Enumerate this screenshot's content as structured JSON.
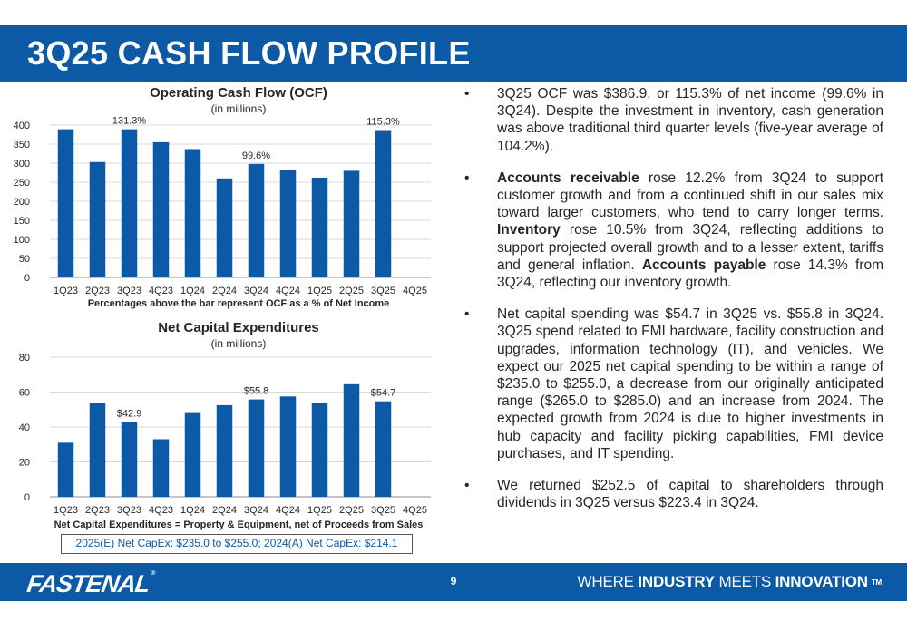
{
  "slide": {
    "title": "3Q25 CASH FLOW PROFILE",
    "page_number": "9",
    "colors": {
      "brand_blue": "#0c5aa6",
      "bar": "#0c5aa6",
      "text": "#262626"
    }
  },
  "chart_data": [
    {
      "type": "bar",
      "title": "Operating Cash Flow (OCF)",
      "subtitle": "(in millions)",
      "xlabel": "Percentages above the bar represent OCF as a % of Net Income",
      "ylabel": "",
      "categories": [
        "1Q23",
        "2Q23",
        "3Q23",
        "4Q23",
        "1Q24",
        "2Q24",
        "3Q24",
        "4Q24",
        "1Q25",
        "2Q25",
        "3Q25",
        "4Q25"
      ],
      "values": [
        389,
        303,
        389,
        355,
        337,
        260,
        298,
        282,
        262,
        280,
        386.9,
        null
      ],
      "bar_labels": [
        "",
        "",
        "131.3%",
        "",
        "",
        "",
        "99.6%",
        "",
        "",
        "",
        "115.3%",
        ""
      ],
      "yticks": [
        0,
        50,
        100,
        150,
        200,
        250,
        300,
        350,
        400
      ],
      "ylim": [
        0,
        400
      ],
      "grid": true
    },
    {
      "type": "bar",
      "title": "Net Capital Expenditures",
      "subtitle": "(in millions)",
      "xlabel": "Net Capital Expenditures = Property & Equipment, net of Proceeds from Sales",
      "ylabel": "",
      "categories": [
        "1Q23",
        "2Q23",
        "3Q23",
        "4Q23",
        "1Q24",
        "2Q24",
        "3Q24",
        "4Q24",
        "1Q25",
        "2Q25",
        "3Q25",
        "4Q25"
      ],
      "values": [
        31,
        54,
        42.9,
        33,
        48,
        52.5,
        55.8,
        57.5,
        54,
        64.5,
        54.7,
        null
      ],
      "bar_labels": [
        "",
        "",
        "$42.9",
        "",
        "",
        "",
        "$55.8",
        "",
        "",
        "",
        "$54.7",
        ""
      ],
      "yticks": [
        0,
        20,
        40,
        60,
        80
      ],
      "ylim": [
        0,
        80
      ],
      "grid": true
    }
  ],
  "capex_note": "2025(E) Net CapEx: $235.0 to $255.0; 2024(A) Net CapEx: $214.1",
  "bullets": [
    [
      {
        "text": "3Q25 OCF was $386.9, or 115.3% of net income (99.6% in 3Q24). Despite the investment in inventory, cash generation was above traditional third quarter levels (five-year average of 104.2%).",
        "bold": false
      }
    ],
    [
      {
        "text": "Accounts receivable",
        "bold": true
      },
      {
        "text": " rose 12.2% from 3Q24 to support customer growth and from a continued shift in our sales mix toward larger customers, who tend to carry longer terms. ",
        "bold": false
      },
      {
        "text": "Inventory",
        "bold": true
      },
      {
        "text": " rose 10.5% from 3Q24, reflecting additions to support projected overall growth and to a lesser extent, tariffs and general inflation. ",
        "bold": false
      },
      {
        "text": "Accounts payable",
        "bold": true
      },
      {
        "text": " rose 14.3% from 3Q24, reflecting our inventory growth.",
        "bold": false
      }
    ],
    [
      {
        "text": "Net capital spending was $54.7 in 3Q25 vs. $55.8 in 3Q24. 3Q25 spend related to FMI hardware, facility construction and upgrades, information technology (IT), and vehicles. We expect our 2025 net capital spending to be within a range of $235.0 to $255.0, a decrease from our originally anticipated range ($265.0 to $285.0) and an increase from 2024. The expected growth from 2024 is due to higher investments in hub capacity and facility picking capabilities, FMI device purchases, and IT spending.",
        "bold": false
      }
    ],
    [
      {
        "text": "We returned $252.5 of capital to shareholders through dividends in 3Q25 versus $223.4 in 3Q24.",
        "bold": false
      }
    ]
  ],
  "bullet_glyph": "•",
  "footer": {
    "logo_text": "FASTENAL",
    "logo_mark": "®",
    "tagline_parts": [
      {
        "text": "WHERE ",
        "bold": false
      },
      {
        "text": "INDUSTRY",
        "bold": true
      },
      {
        "text": " MEETS ",
        "bold": false
      },
      {
        "text": "INNOVATION",
        "bold": true
      }
    ],
    "tagline_tm": "TM"
  }
}
